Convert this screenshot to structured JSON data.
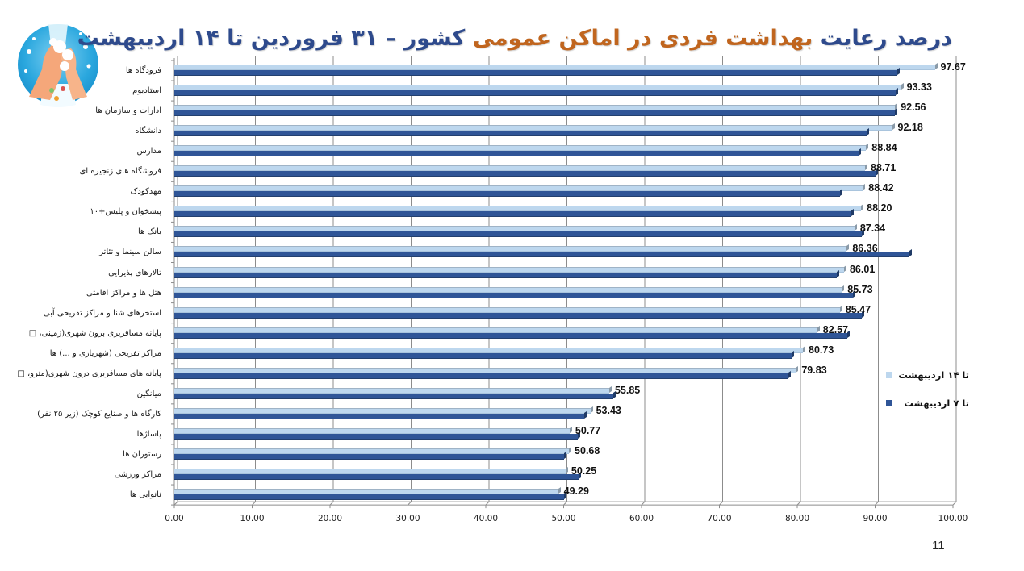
{
  "title": {
    "part1": "درصد رعایت ",
    "part2": "بهداشت فردی در اماکن عمومی ",
    "part3": "کشور  –  ۳۱ فروردین تا ۱۴ اردیبهشت"
  },
  "colors": {
    "title_navy": "#2e4a8c",
    "title_orange": "#c0651e",
    "series_light": "#bdd7ee",
    "series_dark": "#2f5597",
    "grid": "#8c8c8c"
  },
  "logo": {
    "icon": "handwashing-icon"
  },
  "legend": [
    {
      "label": "تا ۱۴ اردیبهشت",
      "color": "#bdd7ee"
    },
    {
      "label": "تا ۷ اردیبهشت",
      "color": "#2f5597"
    }
  ],
  "page_number": "11",
  "chart_data": {
    "type": "bar",
    "orientation": "horizontal",
    "title": "درصد رعایت بهداشت فردی در اماکن عمومی کشور – ۳۱ فروردین تا ۱۴ اردیبهشت",
    "xlabel": "",
    "ylabel": "",
    "xlim": [
      0,
      100
    ],
    "xticks": [
      0,
      10,
      20,
      30,
      40,
      50,
      60,
      70,
      80,
      90,
      100
    ],
    "xtick_labels": [
      "0.00",
      "10.00",
      "20.00",
      "30.00",
      "40.00",
      "50.00",
      "60.00",
      "70.00",
      "80.00",
      "90.00",
      "100.00"
    ],
    "grid": true,
    "legend_position": "right",
    "categories": [
      "فرودگاه ها",
      "استادیوم",
      "ادارات و سازمان ها",
      "دانشگاه",
      "مدارس",
      "فروشگاه های زنجیره ای",
      "مهدکودک",
      "پیشخوان و پلیس+۱۰",
      "بانک ها",
      "سالن سینما و تئاتر",
      "تالارهای پذیرایی",
      "هتل ها و مراکز اقامتی",
      "استخرهای شنا و مراکز تفریحی آبی",
      "پایانه مسافربری برون شهری(زمینی، □",
      "مراکز تفریحی (شهربازی و ...) ها",
      "پایانه های مسافربری درون شهری(مترو، □",
      "میانگین",
      "کارگاه ها و صنایع کوچک (زیر ۲۵ نفر)",
      "پاساژها",
      "رستوران ها",
      "مراکز ورزشی",
      "نانوایی ها"
    ],
    "series": [
      {
        "name": "تا ۱۴ اردیبهشت",
        "color": "#bdd7ee",
        "values": [
          97.67,
          93.33,
          92.56,
          92.18,
          88.84,
          88.71,
          88.42,
          88.2,
          87.34,
          86.36,
          86.01,
          85.73,
          85.47,
          82.57,
          80.73,
          79.83,
          55.85,
          53.43,
          50.77,
          50.68,
          50.25,
          49.29
        ],
        "value_labels": [
          "97.67",
          "93.33",
          "92.56",
          "92.18",
          "88.84",
          "88.71",
          "88.42",
          "88.20",
          "87.34",
          "86.36",
          "86.01",
          "85.73",
          "85.47",
          "82.57",
          "80.73",
          "79.83",
          "55.85",
          "53.43",
          "50.77",
          "50.68",
          "50.25",
          "49.29"
        ]
      },
      {
        "name": "تا ۷ اردیبهشت",
        "color": "#2f5597",
        "values": [
          92.9,
          92.6,
          92.5,
          88.9,
          87.9,
          90.0,
          85.5,
          86.9,
          88.3,
          94.4,
          85.1,
          87.1,
          88.3,
          86.4,
          79.3,
          78.9,
          56.4,
          52.6,
          51.8,
          50.0,
          51.9,
          50.1
        ]
      }
    ]
  }
}
